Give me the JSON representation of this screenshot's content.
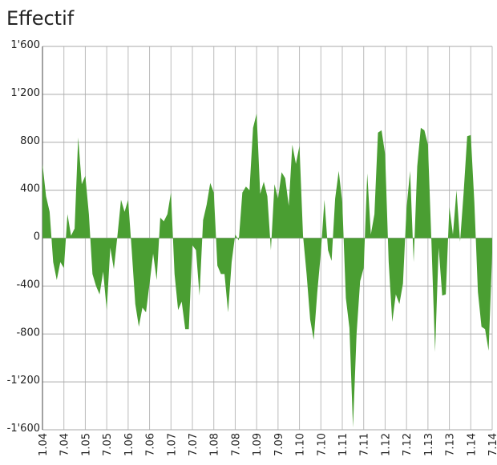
{
  "chart_data": {
    "type": "area",
    "title": "Effectif",
    "color": "#4a9e32",
    "grid": true,
    "categories": [
      "1.04",
      null,
      null,
      null,
      null,
      null,
      "7.04",
      null,
      null,
      null,
      null,
      null,
      "1.05",
      null,
      null,
      null,
      null,
      null,
      "7.05",
      null,
      null,
      null,
      null,
      null,
      "1.06",
      null,
      null,
      null,
      null,
      null,
      "7.06",
      null,
      null,
      null,
      null,
      null,
      "1.07",
      null,
      null,
      null,
      null,
      null,
      "7.07",
      null,
      null,
      null,
      null,
      null,
      "1.08",
      null,
      null,
      null,
      null,
      null,
      "7.08",
      null,
      null,
      null,
      null,
      null,
      "1.09",
      null,
      null,
      null,
      null,
      null,
      "7.09",
      null,
      null,
      null,
      null,
      null,
      "1.10",
      null,
      null,
      null,
      null,
      null,
      "7.10",
      null,
      null,
      null,
      null,
      null,
      "1.11",
      null,
      null,
      null,
      null,
      null,
      "7.11",
      null,
      null,
      null,
      null,
      null,
      "1.12",
      null,
      null,
      null,
      null,
      null,
      "7.12",
      null,
      null,
      null,
      null,
      null,
      "1.13",
      null,
      null,
      null,
      null,
      null,
      "7.13",
      null,
      null,
      null,
      null,
      null,
      "1.14",
      null,
      null,
      null,
      null,
      null,
      "7.14"
    ],
    "values": [
      620,
      350,
      220,
      -200,
      -350,
      -200,
      -250,
      200,
      20,
      80,
      840,
      450,
      520,
      200,
      -300,
      -400,
      -470,
      -280,
      -600,
      -80,
      -260,
      20,
      320,
      220,
      320,
      -100,
      -550,
      -740,
      -580,
      -620,
      -380,
      -130,
      -350,
      170,
      140,
      200,
      380,
      -300,
      -600,
      -530,
      -760,
      -760,
      -60,
      -100,
      -480,
      150,
      280,
      460,
      380,
      -230,
      -300,
      -300,
      -620,
      -200,
      30,
      -20,
      380,
      430,
      400,
      920,
      1040,
      370,
      470,
      350,
      -100,
      450,
      330,
      550,
      500,
      270,
      780,
      620,
      770,
      20,
      -300,
      -680,
      -850,
      -450,
      -120,
      320,
      -100,
      -190,
      330,
      560,
      300,
      -500,
      -750,
      -1580,
      -800,
      -360,
      -250,
      540,
      30,
      200,
      880,
      900,
      700,
      -200,
      -700,
      -470,
      -550,
      -380,
      250,
      560,
      -200,
      600,
      920,
      900,
      780,
      -50,
      -950,
      -80,
      -480,
      -470,
      260,
      30,
      400,
      -30,
      380,
      850,
      860,
      300,
      -450,
      -740,
      -760,
      -940,
      -120
    ],
    "ylim": [
      -1600,
      1600
    ],
    "yticks": [
      {
        "value": 1600,
        "label": "1'600"
      },
      {
        "value": 1200,
        "label": "1'200"
      },
      800,
      400,
      0,
      -400,
      -800,
      {
        "value": -1200,
        "label": "-1'200"
      },
      {
        "value": -1600,
        "label": "-1'600"
      }
    ]
  }
}
